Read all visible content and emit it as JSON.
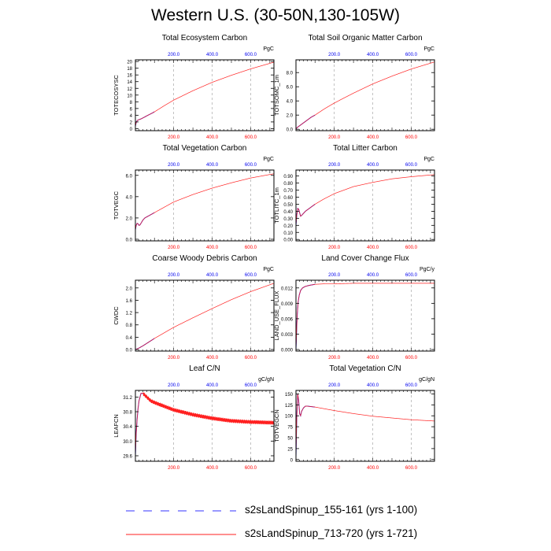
{
  "title": "Western U.S. (30-50N,130-105W)",
  "legend": [
    {
      "label": "s2sLandSpinup_155-161 (yrs 1-100)",
      "style": "dashed",
      "color": "#3333ff"
    },
    {
      "label": "s2sLandSpinup_713-720 (yrs 1-721)",
      "style": "solid",
      "color": "#ff2020"
    }
  ],
  "colors": {
    "case1": "#0000ee",
    "case2": "#ff2020",
    "top_tick": "#0000ee",
    "bottom_tick": "#ff0000",
    "grid": "#999999"
  },
  "chart_data": [
    {
      "type": "line",
      "title": "Total Ecosystem Carbon",
      "ylabel": "TOTECOSYSC",
      "units": "PgC",
      "xlim": [
        1,
        721
      ],
      "xticks_top": [
        "200.0",
        "400.0",
        "600.0"
      ],
      "xticks_bottom": [
        "200.0",
        "400.0",
        "600.0"
      ],
      "ylim": [
        -0.6,
        20.5
      ],
      "yticks": [
        "0",
        "2",
        "4",
        "6",
        "8",
        "10",
        "12",
        "14",
        "16",
        "18",
        "20"
      ],
      "series": [
        {
          "name": "s2sLandSpinup_155-161",
          "x": [
            1,
            5,
            10,
            20,
            30,
            40,
            60,
            80,
            100
          ],
          "values": [
            0.8,
            1.8,
            2.4,
            2.7,
            2.9,
            3.2,
            3.8,
            4.4,
            5.0
          ]
        },
        {
          "name": "s2sLandSpinup_713-720",
          "x": [
            1,
            5,
            10,
            20,
            30,
            40,
            60,
            80,
            100,
            150,
            200,
            300,
            400,
            500,
            600,
            721
          ],
          "values": [
            0.8,
            1.8,
            2.4,
            2.7,
            2.9,
            3.2,
            3.8,
            4.4,
            5.0,
            6.8,
            8.5,
            11.3,
            13.8,
            15.9,
            17.8,
            19.8
          ]
        }
      ]
    },
    {
      "type": "line",
      "title": "Total Soil Organic Matter Carbon",
      "ylabel": "TOTSOMC_1m",
      "units": "PgC",
      "xlim": [
        1,
        721
      ],
      "xticks_top": [
        "200.0",
        "400.0",
        "600.0"
      ],
      "xticks_bottom": [
        "200.0",
        "400.0",
        "600.0"
      ],
      "ylim": [
        -0.2,
        9.8
      ],
      "yticks": [
        "0.0",
        "2.0",
        "4.0",
        "6.0",
        "8.0"
      ],
      "series": [
        {
          "name": "s2sLandSpinup_155-161",
          "x": [
            1,
            10,
            20,
            40,
            60,
            80,
            100
          ],
          "values": [
            0.05,
            0.3,
            0.5,
            0.9,
            1.3,
            1.7,
            2.0
          ]
        },
        {
          "name": "s2sLandSpinup_713-720",
          "x": [
            1,
            10,
            20,
            40,
            60,
            80,
            100,
            150,
            200,
            300,
            400,
            500,
            600,
            721
          ],
          "values": [
            0.05,
            0.3,
            0.5,
            0.9,
            1.3,
            1.7,
            2.0,
            2.9,
            3.7,
            5.1,
            6.4,
            7.5,
            8.5,
            9.5
          ]
        }
      ]
    },
    {
      "type": "line",
      "title": "Total Vegetation Carbon",
      "ylabel": "TOTVEGC",
      "units": "PgC",
      "xlim": [
        1,
        721
      ],
      "xticks_top": [
        "200.0",
        "400.0",
        "600.0"
      ],
      "xticks_bottom": [
        "200.0",
        "400.0",
        "600.0"
      ],
      "ylim": [
        -0.15,
        6.5
      ],
      "yticks": [
        "0.0",
        "2.0",
        "4.0",
        "6.0"
      ],
      "series": [
        {
          "name": "s2sLandSpinup_155-161",
          "x": [
            1,
            5,
            10,
            15,
            20,
            25,
            30,
            40,
            50,
            60,
            80,
            100
          ],
          "values": [
            0.9,
            1.3,
            1.5,
            1.45,
            1.3,
            1.35,
            1.5,
            1.8,
            2.0,
            2.1,
            2.3,
            2.5
          ]
        },
        {
          "name": "s2sLandSpinup_713-720",
          "x": [
            1,
            5,
            10,
            15,
            20,
            25,
            30,
            40,
            50,
            60,
            80,
            100,
            150,
            200,
            300,
            400,
            500,
            600,
            721
          ],
          "values": [
            0.9,
            1.3,
            1.5,
            1.45,
            1.3,
            1.35,
            1.5,
            1.8,
            2.0,
            2.1,
            2.3,
            2.5,
            3.0,
            3.5,
            4.2,
            4.8,
            5.3,
            5.75,
            6.15
          ]
        }
      ]
    },
    {
      "type": "line",
      "title": "Total Litter Carbon",
      "ylabel": "TOTLITC_1m",
      "units": "PgC",
      "xlim": [
        1,
        721
      ],
      "xticks_top": [
        "200.0",
        "400.0",
        "600.0"
      ],
      "xticks_bottom": [
        "200.0",
        "400.0",
        "600.0"
      ],
      "ylim": [
        -0.02,
        0.985
      ],
      "yticks": [
        "0.00",
        "0.10",
        "0.20",
        "0.30",
        "0.40",
        "0.50",
        "0.60",
        "0.70",
        "0.80",
        "0.90"
      ],
      "series": [
        {
          "name": "s2sLandSpinup_155-161",
          "x": [
            1,
            5,
            10,
            15,
            20,
            25,
            30,
            40,
            50,
            60,
            80,
            100
          ],
          "values": [
            0.2,
            0.34,
            0.44,
            0.43,
            0.38,
            0.33,
            0.34,
            0.37,
            0.4,
            0.42,
            0.46,
            0.5
          ]
        },
        {
          "name": "s2sLandSpinup_713-720",
          "x": [
            1,
            5,
            10,
            15,
            20,
            25,
            30,
            40,
            50,
            60,
            80,
            100,
            150,
            200,
            300,
            400,
            500,
            600,
            721
          ],
          "values": [
            0.2,
            0.34,
            0.44,
            0.43,
            0.38,
            0.33,
            0.34,
            0.37,
            0.4,
            0.42,
            0.46,
            0.5,
            0.58,
            0.65,
            0.75,
            0.81,
            0.86,
            0.89,
            0.92
          ]
        }
      ]
    },
    {
      "type": "line",
      "title": "Coarse Woody Debris Carbon",
      "ylabel": "CWDC",
      "units": "PgC",
      "xlim": [
        1,
        721
      ],
      "xticks_top": [
        "200.0",
        "400.0",
        "600.0"
      ],
      "xticks_bottom": [
        "200.0",
        "400.0",
        "600.0"
      ],
      "ylim": [
        -0.05,
        2.25
      ],
      "yticks": [
        "0.0",
        "0.4",
        "0.8",
        "1.2",
        "1.6",
        "2.0"
      ],
      "series": [
        {
          "name": "s2sLandSpinup_155-161",
          "x": [
            1,
            10,
            20,
            40,
            60,
            80,
            100
          ],
          "values": [
            0.0,
            0.02,
            0.05,
            0.12,
            0.2,
            0.28,
            0.36
          ]
        },
        {
          "name": "s2sLandSpinup_713-720",
          "x": [
            1,
            10,
            20,
            40,
            60,
            80,
            100,
            150,
            200,
            300,
            400,
            500,
            600,
            721
          ],
          "values": [
            0.0,
            0.02,
            0.05,
            0.12,
            0.2,
            0.28,
            0.36,
            0.54,
            0.72,
            1.03,
            1.33,
            1.62,
            1.88,
            2.15
          ]
        }
      ]
    },
    {
      "type": "line",
      "title": "Land Cover Change Flux",
      "ylabel": "LAND_USE_FLUX",
      "units": "PgC/y",
      "xlim": [
        1,
        721
      ],
      "xticks_top": [
        "200.0",
        "400.0",
        "600.0"
      ],
      "xticks_bottom": [
        "200.0",
        "400.0",
        "600.0"
      ],
      "ylim": [
        -0.0003,
        0.0135
      ],
      "yticks": [
        "0.000",
        "0.003",
        "0.006",
        "0.009",
        "0.012"
      ],
      "series": [
        {
          "name": "s2sLandSpinup_155-161",
          "x": [
            1,
            3,
            5,
            8,
            12,
            18,
            25,
            35,
            50,
            70,
            100
          ],
          "values": [
            0.0,
            0.002,
            0.0045,
            0.007,
            0.0092,
            0.0106,
            0.0115,
            0.012,
            0.0123,
            0.0125,
            0.0127
          ]
        },
        {
          "name": "s2sLandSpinup_713-720",
          "x": [
            1,
            3,
            5,
            8,
            12,
            18,
            25,
            35,
            50,
            70,
            100,
            150,
            200,
            300,
            400,
            500,
            600,
            721
          ],
          "values": [
            0.0,
            0.002,
            0.0045,
            0.007,
            0.0092,
            0.0106,
            0.0115,
            0.012,
            0.0123,
            0.0125,
            0.0127,
            0.0128,
            0.0128,
            0.0129,
            0.0129,
            0.0129,
            0.0129,
            0.0129
          ]
        }
      ]
    },
    {
      "type": "line",
      "title": "Leaf C/N",
      "ylabel": "LEAFCN",
      "units": "gC/gN",
      "xlim": [
        1,
        721
      ],
      "xticks_top": [
        "200.0",
        "400.0",
        "600.0"
      ],
      "xticks_bottom": [
        "200.0",
        "400.0",
        "600.0"
      ],
      "ylim": [
        29.45,
        31.38
      ],
      "yticks": [
        "29.6",
        "30.0",
        "30.4",
        "30.8",
        "31.2"
      ],
      "series": [
        {
          "name": "s2sLandSpinup_155-161",
          "x": [
            1,
            5,
            10,
            15,
            20,
            30,
            40,
            60,
            80,
            100
          ],
          "values": [
            29.6,
            30.2,
            30.6,
            30.9,
            31.1,
            31.3,
            31.3,
            31.2,
            31.1,
            31.05
          ]
        },
        {
          "name": "s2sLandSpinup_713-720",
          "x": [
            1,
            5,
            10,
            15,
            20,
            30,
            40,
            60,
            80,
            100,
            150,
            200,
            300,
            400,
            500,
            600,
            721
          ],
          "values": [
            29.6,
            30.2,
            30.6,
            30.9,
            31.1,
            31.3,
            31.3,
            31.2,
            31.1,
            31.05,
            30.95,
            30.85,
            30.72,
            30.62,
            30.55,
            30.52,
            30.5
          ]
        }
      ]
    },
    {
      "type": "line",
      "title": "Total Vegetation C/N",
      "ylabel": "TOTVEGCN",
      "units": "gC/gN",
      "xlim": [
        1,
        721
      ],
      "xticks_top": [
        "200.0",
        "400.0",
        "600.0"
      ],
      "xticks_bottom": [
        "200.0",
        "400.0",
        "600.0"
      ],
      "ylim": [
        -4,
        158
      ],
      "yticks": [
        "0",
        "25",
        "50",
        "75",
        "100",
        "125",
        "150"
      ],
      "series": [
        {
          "name": "s2sLandSpinup_155-161",
          "x": [
            1,
            5,
            10,
            15,
            20,
            25,
            30,
            40,
            50,
            60,
            80,
            100
          ],
          "values": [
            5,
            95,
            150,
            135,
            105,
            100,
            110,
            118,
            122,
            122,
            121,
            120
          ]
        },
        {
          "name": "s2sLandSpinup_713-720",
          "x": [
            1,
            5,
            10,
            15,
            20,
            25,
            30,
            40,
            50,
            60,
            80,
            100,
            150,
            200,
            300,
            400,
            500,
            600,
            721
          ],
          "values": [
            5,
            95,
            150,
            135,
            105,
            100,
            110,
            118,
            122,
            122,
            121,
            120,
            116,
            112,
            105,
            99,
            95,
            91,
            88
          ]
        }
      ]
    }
  ]
}
